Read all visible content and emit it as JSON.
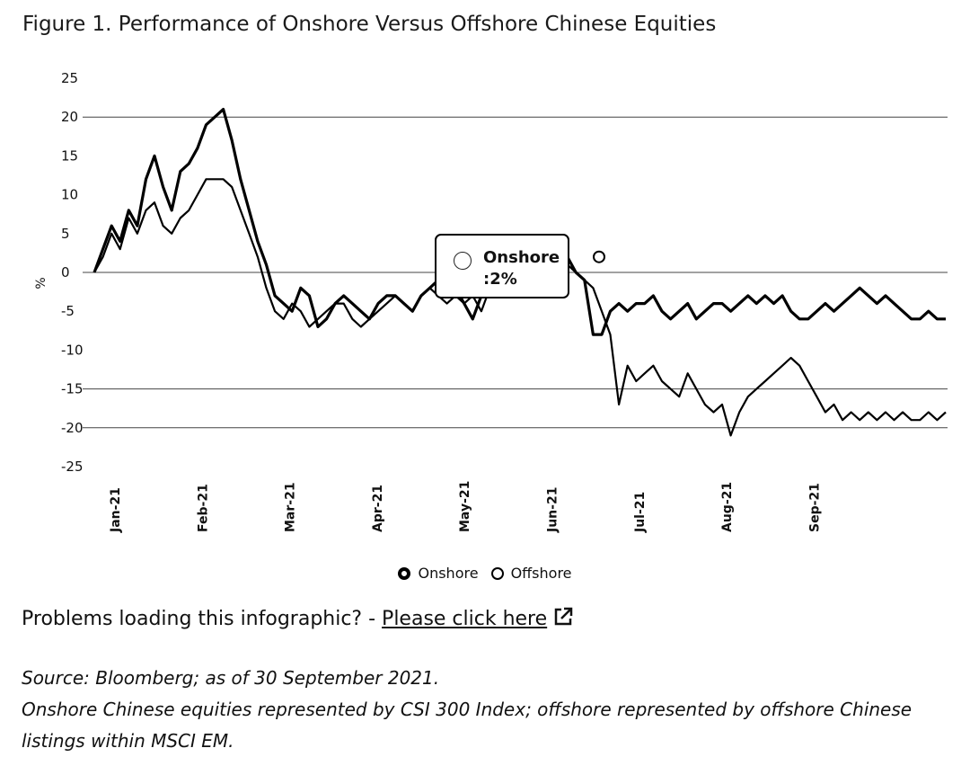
{
  "figure": {
    "title": "Figure 1. Performance of Onshore Versus Offshore Chinese Equities"
  },
  "chart_data": {
    "type": "line",
    "ylabel": "%",
    "xlabel": "",
    "ylim": [
      -25,
      25
    ],
    "yticks": [
      25,
      20,
      15,
      10,
      5,
      0,
      -5,
      -10,
      -15,
      -20,
      -25
    ],
    "gridlines_at": [
      20,
      0,
      -15,
      -20
    ],
    "x_tick_labels": [
      "Jan-21",
      "Feb-21",
      "Mar-21",
      "Apr-21",
      "May-21",
      "Jun-21",
      "Jul-21",
      "Aug-21",
      "Sep-21"
    ],
    "legend_position": "bottom-center",
    "series": [
      {
        "name": "Onshore",
        "values": [
          0,
          3,
          6,
          4,
          8,
          6,
          12,
          15,
          11,
          8,
          13,
          14,
          16,
          19,
          20,
          21,
          17,
          12,
          8,
          4,
          1,
          -3,
          -4,
          -5,
          -2,
          -3,
          -7,
          -6,
          -4,
          -3,
          -4,
          -5,
          -6,
          -4,
          -3,
          -3,
          -4,
          -5,
          -3,
          -2,
          -1,
          -1,
          -2,
          -4,
          -6,
          -3,
          -2,
          0,
          2,
          2,
          0,
          -2,
          -1,
          0,
          1,
          2,
          0,
          -1,
          -8,
          -8,
          -5,
          -4,
          -5,
          -4,
          -4,
          -3,
          -5,
          -6,
          -5,
          -4,
          -6,
          -5,
          -4,
          -4,
          -5,
          -4,
          -3,
          -4,
          -3,
          -4,
          -3,
          -5,
          -6,
          -6,
          -5,
          -4,
          -5,
          -4,
          -3,
          -2,
          -3,
          -4,
          -3,
          -4,
          -5,
          -6,
          -6,
          -5,
          -6,
          -6
        ],
        "color": "#000000"
      },
      {
        "name": "Offshore",
        "values": [
          0,
          2,
          5,
          3,
          7,
          5,
          8,
          9,
          6,
          5,
          7,
          8,
          10,
          12,
          12,
          12,
          11,
          8,
          5,
          2,
          -2,
          -5,
          -6,
          -4,
          -5,
          -7,
          -6,
          -5,
          -4,
          -4,
          -6,
          -7,
          -6,
          -5,
          -4,
          -3,
          -4,
          -5,
          -3,
          -2,
          -3,
          -4,
          -3,
          -4,
          -3,
          -5,
          -2,
          -1,
          0,
          1,
          1,
          0,
          -1,
          0,
          1,
          1,
          0,
          -1,
          -2,
          -5,
          -8,
          -17,
          -12,
          -14,
          -13,
          -12,
          -14,
          -15,
          -16,
          -13,
          -15,
          -17,
          -18,
          -17,
          -21,
          -18,
          -16,
          -15,
          -14,
          -13,
          -12,
          -11,
          -12,
          -14,
          -16,
          -18,
          -17,
          -19,
          -18,
          -19,
          -18,
          -19,
          -18,
          -19,
          -18,
          -19,
          -19,
          -18,
          -19,
          -18
        ],
        "color": "#000000"
      }
    ],
    "tooltip": {
      "series": "Onshore",
      "value_text": ":2%"
    }
  },
  "legend": {
    "onshore": "Onshore",
    "offshore": "Offshore"
  },
  "links": {
    "problems_text": "Problems loading this infographic? - ",
    "link_label": "Please click here"
  },
  "source": {
    "line1": "Source: Bloomberg; as of 30 September 2021.",
    "line2": "Onshore Chinese equities represented by CSI 300 Index; offshore represented by offshore Chinese",
    "line3": "listings within MSCI EM."
  }
}
